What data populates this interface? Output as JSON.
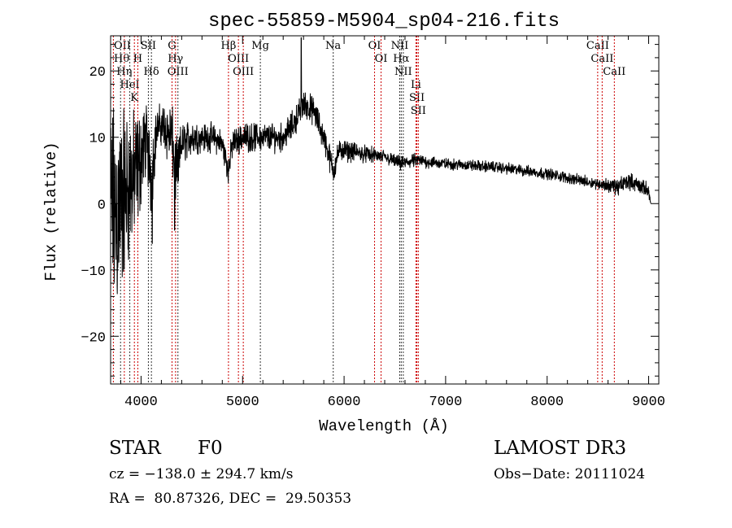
{
  "chart_data": {
    "type": "line",
    "title": "spec-55859-M5904_sp04-216.fits",
    "xlabel": "Wavelength (Å)",
    "ylabel": "Flux (relative)",
    "xlim": [
      3700,
      9100
    ],
    "ylim": [
      -27.2,
      25.3
    ],
    "xticks": [
      4000,
      5000,
      6000,
      7000,
      8000,
      9000
    ],
    "yticks": [
      -20,
      -10,
      0,
      10,
      20
    ],
    "grid": false,
    "series": [
      {
        "name": "spectrum",
        "color": "#000000",
        "anchors_wavelength_flux_noise": [
          [
            3700,
            0,
            14
          ],
          [
            3750,
            -2,
            16
          ],
          [
            3800,
            0,
            14
          ],
          [
            3850,
            2,
            12
          ],
          [
            3900,
            3,
            10
          ],
          [
            3950,
            4,
            9
          ],
          [
            4000,
            7,
            7
          ],
          [
            4050,
            10,
            5
          ],
          [
            4100,
            4,
            6
          ],
          [
            4150,
            11,
            3
          ],
          [
            4200,
            12,
            3
          ],
          [
            4250,
            11,
            4
          ],
          [
            4300,
            10,
            5
          ],
          [
            4350,
            4,
            5
          ],
          [
            4400,
            9,
            3
          ],
          [
            4500,
            10,
            2.5
          ],
          [
            4600,
            10,
            2
          ],
          [
            4700,
            10,
            2
          ],
          [
            4800,
            9,
            2
          ],
          [
            4861,
            5,
            2
          ],
          [
            4900,
            9,
            2
          ],
          [
            5000,
            10,
            2
          ],
          [
            5100,
            10,
            2
          ],
          [
            5200,
            10,
            2
          ],
          [
            5300,
            10,
            2
          ],
          [
            5400,
            10,
            2
          ],
          [
            5500,
            12,
            2
          ],
          [
            5600,
            15,
            2
          ],
          [
            5700,
            14,
            2
          ],
          [
            5800,
            10,
            2
          ],
          [
            5893,
            5,
            2
          ],
          [
            5950,
            8,
            1.5
          ],
          [
            6000,
            8,
            1.5
          ],
          [
            6200,
            7.5,
            1.2
          ],
          [
            6400,
            7,
            1
          ],
          [
            6563,
            6,
            1
          ],
          [
            6700,
            6.5,
            1
          ],
          [
            7000,
            6,
            0.8
          ],
          [
            7500,
            5.5,
            0.8
          ],
          [
            8000,
            4.5,
            0.8
          ],
          [
            8500,
            3,
            0.8
          ],
          [
            8700,
            2.5,
            1.2
          ],
          [
            8800,
            3.5,
            1.2
          ],
          [
            9000,
            2,
            1
          ],
          [
            9020,
            0,
            0
          ]
        ],
        "spikes_wavelength_flux": [
          [
            5577,
            25
          ],
          [
            4330,
            -4
          ],
          [
            4110,
            -6
          ]
        ]
      }
    ],
    "lines": [
      {
        "label": "OII",
        "wavelength": 3727,
        "color": "red"
      },
      {
        "label": "Hθ",
        "wavelength": 3798,
        "color": "black"
      },
      {
        "label": "Hη",
        "wavelength": 3835,
        "color": "red"
      },
      {
        "label": "HeI",
        "wavelength": 3889,
        "color": "black"
      },
      {
        "label": "K",
        "wavelength": 3934,
        "color": "red"
      },
      {
        "label": "H",
        "wavelength": 3968,
        "color": "red"
      },
      {
        "label": "SII",
        "wavelength": 4072,
        "color": "black"
      },
      {
        "label": "Hδ",
        "wavelength": 4102,
        "color": "black"
      },
      {
        "label": "G",
        "wavelength": 4305,
        "color": "red"
      },
      {
        "label": "Hγ",
        "wavelength": 4340,
        "color": "red"
      },
      {
        "label": "OIII",
        "wavelength": 4363,
        "color": "black"
      },
      {
        "label": "Hβ",
        "wavelength": 4861,
        "color": "red"
      },
      {
        "label": "OIII",
        "wavelength": 4959,
        "color": "red"
      },
      {
        "label": "OIII",
        "wavelength": 5007,
        "color": "red"
      },
      {
        "label": "Mg",
        "wavelength": 5175,
        "color": "black"
      },
      {
        "label": "Na",
        "wavelength": 5893,
        "color": "black"
      },
      {
        "label": "OI",
        "wavelength": 6300,
        "color": "red"
      },
      {
        "label": "OI",
        "wavelength": 6364,
        "color": "red"
      },
      {
        "label": "NII",
        "wavelength": 6548,
        "color": "black"
      },
      {
        "label": "Hα",
        "wavelength": 6563,
        "color": "black"
      },
      {
        "label": "NII",
        "wavelength": 6583,
        "color": "black"
      },
      {
        "label": "Li",
        "wavelength": 6708,
        "color": "red"
      },
      {
        "label": "SII",
        "wavelength": 6717,
        "color": "red"
      },
      {
        "label": "SII",
        "wavelength": 6731,
        "color": "red"
      },
      {
        "label": "CaII",
        "wavelength": 8498,
        "color": "red"
      },
      {
        "label": "CaII",
        "wavelength": 8542,
        "color": "red"
      },
      {
        "label": "CaII",
        "wavelength": 8662,
        "color": "red"
      }
    ]
  },
  "info": {
    "object_class": "STAR",
    "subclass": "F0",
    "survey": "LAMOST DR3",
    "cz": "cz = −138.0 ± 294.7 km/s",
    "obs_date": "Obs−Date: 20111024",
    "coords": "RA =  80.87326, DEC =  29.50353"
  }
}
